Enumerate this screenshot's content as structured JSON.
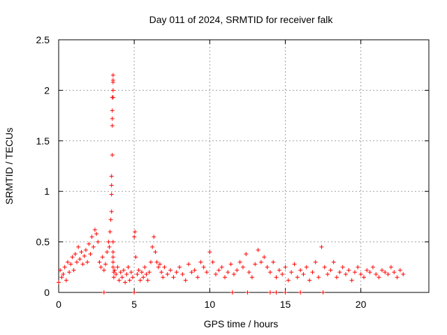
{
  "chart_data": {
    "type": "scatter",
    "title": "Day 011 of 2024, SRMTID for receiver falk",
    "xlabel": "GPS time / hours",
    "ylabel": "SRMTID / TECUs",
    "xlim": [
      0,
      24.5
    ],
    "ylim": [
      0,
      2.5
    ],
    "xticks": [
      0,
      5,
      10,
      15,
      20
    ],
    "xtick_labels": [
      "0",
      "5",
      "10",
      "15",
      "20"
    ],
    "yticks": [
      0,
      0.5,
      1,
      1.5,
      2,
      2.5
    ],
    "ytick_labels": [
      "0",
      "0.5",
      "1",
      "1.5",
      "2",
      "2.5"
    ],
    "grid": true,
    "marker": "+",
    "series": [
      {
        "name": "SRMTID",
        "color": "#ff0000",
        "x": [
          0.0,
          0.1,
          0.2,
          0.3,
          0.4,
          0.5,
          0.6,
          0.7,
          0.8,
          0.9,
          1.0,
          1.1,
          1.2,
          1.3,
          1.4,
          1.5,
          1.6,
          1.7,
          1.8,
          1.9,
          2.0,
          2.1,
          2.2,
          2.3,
          2.4,
          2.5,
          2.6,
          2.7,
          2.8,
          2.9,
          3.0,
          3.1,
          3.2,
          3.3,
          3.35,
          3.4,
          3.45,
          3.5,
          3.5,
          3.5,
          3.5,
          3.55,
          3.55,
          3.55,
          3.55,
          3.55,
          3.6,
          3.6,
          3.6,
          3.6,
          3.6,
          3.6,
          3.6,
          3.6,
          3.6,
          3.6,
          3.65,
          3.65,
          3.7,
          3.8,
          3.9,
          4.0,
          4.1,
          4.2,
          4.3,
          4.4,
          4.5,
          4.6,
          4.7,
          4.8,
          4.9,
          5.0,
          5.05,
          5.1,
          5.2,
          5.3,
          5.4,
          5.5,
          5.6,
          5.7,
          5.8,
          5.9,
          6.0,
          6.1,
          6.2,
          6.3,
          6.4,
          6.5,
          6.6,
          6.7,
          6.8,
          6.9,
          7.0,
          7.2,
          7.4,
          7.6,
          7.8,
          8.0,
          8.2,
          8.4,
          8.6,
          8.8,
          9.0,
          9.2,
          9.4,
          9.6,
          9.8,
          10.0,
          10.2,
          10.4,
          10.6,
          10.8,
          11.0,
          11.2,
          11.4,
          11.6,
          11.8,
          12.0,
          12.2,
          12.4,
          12.6,
          12.8,
          13.0,
          13.2,
          13.4,
          13.6,
          13.8,
          14.0,
          14.2,
          14.4,
          14.6,
          14.8,
          15.0,
          15.2,
          15.4,
          15.6,
          15.8,
          16.0,
          16.2,
          16.4,
          16.6,
          16.8,
          17.0,
          17.2,
          17.4,
          17.6,
          17.8,
          18.0,
          18.2,
          18.4,
          18.6,
          18.8,
          19.0,
          19.2,
          19.4,
          19.6,
          19.8,
          20.0,
          20.2,
          20.4,
          20.6,
          20.8,
          21.0,
          21.2,
          21.4,
          21.6,
          21.8,
          22.0,
          22.2,
          22.4,
          22.6,
          22.8,
          3.0,
          5.0,
          11.5,
          12.5,
          14.0,
          14.4,
          15.0,
          16.0,
          17.5
        ],
        "y": [
          0.1,
          0.22,
          0.15,
          0.18,
          0.25,
          0.12,
          0.3,
          0.2,
          0.28,
          0.35,
          0.22,
          0.38,
          0.3,
          0.45,
          0.33,
          0.4,
          0.28,
          0.36,
          0.42,
          0.3,
          0.48,
          0.38,
          0.55,
          0.45,
          0.62,
          0.58,
          0.5,
          0.3,
          0.25,
          0.35,
          0.22,
          0.28,
          0.4,
          0.5,
          0.45,
          0.6,
          0.72,
          0.8,
          0.97,
          1.06,
          1.15,
          1.36,
          1.65,
          1.72,
          1.8,
          1.93,
          2.15,
          2.1,
          2.08,
          2.0,
          1.93,
          0.5,
          0.4,
          0.35,
          0.3,
          0.25,
          0.2,
          0.15,
          0.22,
          0.18,
          0.25,
          0.12,
          0.2,
          0.15,
          0.22,
          0.1,
          0.18,
          0.25,
          0.12,
          0.2,
          0.15,
          0.55,
          0.6,
          0.35,
          0.18,
          0.22,
          0.12,
          0.2,
          0.15,
          0.25,
          0.18,
          0.12,
          0.2,
          0.3,
          0.45,
          0.55,
          0.4,
          0.3,
          0.25,
          0.28,
          0.2,
          0.15,
          0.25,
          0.18,
          0.22,
          0.15,
          0.2,
          0.25,
          0.18,
          0.12,
          0.28,
          0.2,
          0.22,
          0.15,
          0.3,
          0.25,
          0.2,
          0.4,
          0.3,
          0.18,
          0.22,
          0.25,
          0.15,
          0.2,
          0.28,
          0.18,
          0.22,
          0.3,
          0.25,
          0.38,
          0.2,
          0.15,
          0.28,
          0.42,
          0.3,
          0.35,
          0.25,
          0.2,
          0.3,
          0.15,
          0.22,
          0.18,
          0.25,
          0.12,
          0.2,
          0.28,
          0.15,
          0.22,
          0.18,
          0.25,
          0.12,
          0.2,
          0.3,
          0.15,
          0.45,
          0.25,
          0.18,
          0.22,
          0.3,
          0.15,
          0.2,
          0.25,
          0.18,
          0.22,
          0.12,
          0.2,
          0.25,
          0.18,
          0.15,
          0.22,
          0.2,
          0.25,
          0.18,
          0.15,
          0.22,
          0.2,
          0.18,
          0.25,
          0.2,
          0.15,
          0.22,
          0.18,
          0.0,
          0.0,
          0.0,
          0.0,
          0.0,
          0.0,
          0.0,
          0.0,
          0.0
        ]
      }
    ]
  }
}
